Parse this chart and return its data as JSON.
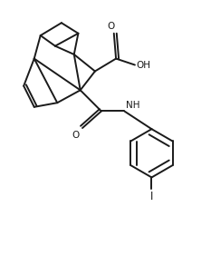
{
  "bg_color": "#ffffff",
  "line_color": "#1a1a1a",
  "line_width": 1.4,
  "fig_width": 2.33,
  "fig_height": 2.82,
  "dpi": 100,
  "xlim": [
    0,
    10
  ],
  "ylim": [
    0,
    12
  ]
}
